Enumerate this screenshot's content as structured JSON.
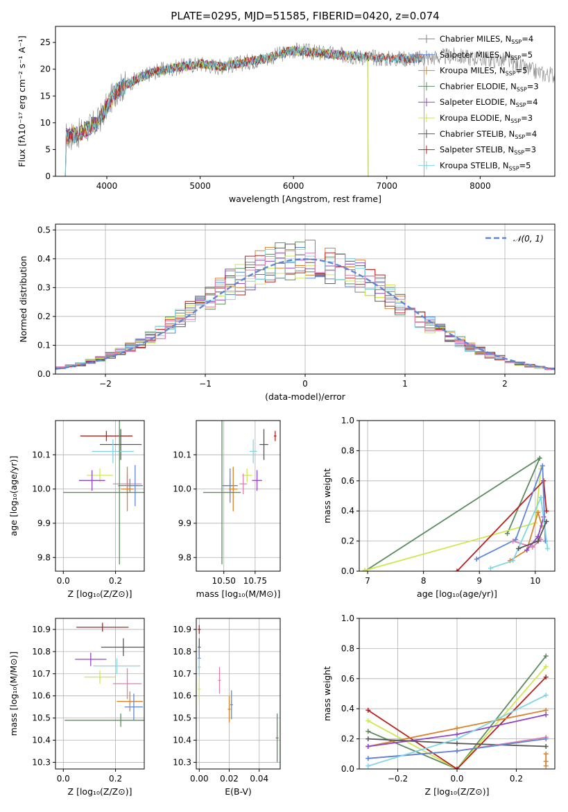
{
  "figure_title": "PLATE=0295, MJD=51585, FIBERID=0420, z=0.074",
  "colors": {
    "Chabrier MILES": "#808080",
    "Salpeter MILES": "#5f86d6",
    "Kroupa MILES": "#d9822b",
    "Chabrier ELODIE": "#5b8a5e",
    "Salpeter ELODIE": "#8e44c6",
    "Kroupa ELODIE": "#cde84c",
    "Chabrier STELIB": "#555555",
    "Salpeter STELIB": "#b81e1e",
    "Kroupa STELIB": "#7fd6e3",
    "pink": "#e07db0",
    "normal_curve": "#5f86d6"
  },
  "chart_data": [
    {
      "id": "spectrum",
      "type": "line",
      "title": "PLATE=0295, MJD=51585, FIBERID=0420, z=0.074",
      "xlabel": "wavelength [Angstrom, rest frame]",
      "ylabel": "Flux [fλ10⁻¹⁷ erg cm⁻² s⁻¹ A⁻¹]",
      "xlim": [
        3450,
        8800
      ],
      "ylim": [
        0,
        28
      ],
      "xticks": [
        "4000",
        "5000",
        "6000",
        "7000",
        "8000"
      ],
      "yticks": [
        "0",
        "5",
        "10",
        "15",
        "20",
        "25"
      ],
      "legend_position": "right",
      "legend": [
        {
          "label": "Chabrier MILES, N",
          "sub": "SSP",
          "tail": "=4",
          "series": "Chabrier MILES"
        },
        {
          "label": "Salpeter MILES, N",
          "sub": "SSP",
          "tail": "=5",
          "series": "Salpeter MILES"
        },
        {
          "label": "Kroupa MILES, N",
          "sub": "SSP",
          "tail": "=5",
          "series": "Kroupa MILES"
        },
        {
          "label": "Chabrier ELODIE, N",
          "sub": "SSP",
          "tail": "=3",
          "series": "Chabrier ELODIE"
        },
        {
          "label": "Salpeter ELODIE, N",
          "sub": "SSP",
          "tail": "=4",
          "series": "Salpeter ELODIE"
        },
        {
          "label": "Kroupa ELODIE, N",
          "sub": "SSP",
          "tail": "=3",
          "series": "Kroupa ELODIE"
        },
        {
          "label": "Chabrier STELIB, N",
          "sub": "SSP",
          "tail": "=4",
          "series": "Chabrier STELIB"
        },
        {
          "label": "Salpeter STELIB, N",
          "sub": "SSP",
          "tail": "=3",
          "series": "Salpeter STELIB"
        },
        {
          "label": "Kroupa STELIB, N",
          "sub": "SSP",
          "tail": "=5",
          "series": "Kroupa STELIB"
        }
      ],
      "continuum": {
        "x": [
          3500,
          3700,
          3900,
          4000,
          4100,
          4300,
          4500,
          4800,
          5000,
          5200,
          5400,
          5700,
          6000,
          6300,
          6600,
          7000,
          7400,
          7700,
          8000,
          8300,
          8500,
          8700
        ],
        "y": [
          7,
          8,
          10,
          13,
          16,
          18,
          19.5,
          20.5,
          21,
          20.5,
          21,
          22,
          23.5,
          23,
          22.5,
          22,
          22,
          22.5,
          22,
          21.5,
          20,
          19
        ]
      },
      "ranges": {
        "Chabrier MILES": [
          3500,
          8800
        ],
        "Salpeter MILES": [
          3520,
          7400
        ],
        "Kroupa MILES": [
          3520,
          7400
        ],
        "Chabrier ELODIE": [
          3520,
          6800
        ],
        "Salpeter ELODIE": [
          3520,
          6800
        ],
        "Kroupa ELODIE": [
          3520,
          6800
        ],
        "Chabrier STELIB": [
          3520,
          7400
        ],
        "Salpeter STELIB": [
          3520,
          7400
        ],
        "Kroupa STELIB": [
          3520,
          7400
        ]
      }
    },
    {
      "id": "residuals",
      "type": "histogram",
      "xlabel": "(data-model)/error",
      "ylabel": "Normed distribution",
      "xlim": [
        -2.5,
        2.5
      ],
      "ylim": [
        0,
        0.52
      ],
      "xticks": [
        "−2",
        "−1",
        "0",
        "1",
        "2"
      ],
      "yticks": [
        "0.0",
        "0.1",
        "0.2",
        "0.3",
        "0.4",
        "0.5"
      ],
      "bin_width": 0.1,
      "legend": [
        {
          "label": "𝒩(0, 1)",
          "series": "normal_curve",
          "style": "dashed"
        }
      ],
      "series": [
        "Chabrier MILES",
        "Salpeter MILES",
        "Kroupa MILES",
        "Chabrier ELODIE",
        "Salpeter ELODIE",
        "Kroupa ELODIE",
        "Chabrier STELIB",
        "Salpeter STELIB",
        "Kroupa STELIB",
        "pink"
      ]
    },
    {
      "id": "age_vs_Z",
      "type": "errorbar",
      "xlabel": "Z [log₁₀(Z/Z⊙)]",
      "ylabel": "age  [log₁₀(age/yr)]",
      "xlim": [
        -0.03,
        0.31
      ],
      "ylim": [
        9.76,
        10.2
      ],
      "xticks": [
        "0.0",
        "0.2"
      ],
      "yticks": [
        "9.8",
        "9.9",
        "10.0",
        "10.1"
      ],
      "points": [
        {
          "series": "Salpeter STELIB",
          "x": 0.165,
          "y": 10.155,
          "xerr": 0.1,
          "yerr": 0.015
        },
        {
          "series": "Chabrier STELIB",
          "x": 0.22,
          "y": 10.13,
          "xerr": 0.08,
          "yerr": 0.045
        },
        {
          "series": "Kroupa STELIB",
          "x": 0.19,
          "y": 10.11,
          "xerr": 0.08,
          "yerr": 0.035
        },
        {
          "series": "Kroupa ELODIE",
          "x": 0.14,
          "y": 10.04,
          "xerr": 0.05,
          "yerr": 0.02
        },
        {
          "series": "Salpeter ELODIE",
          "x": 0.11,
          "y": 10.025,
          "xerr": 0.05,
          "yerr": 0.03
        },
        {
          "series": "pink",
          "x": 0.245,
          "y": 10.015,
          "xerr": 0.055,
          "yerr": 0.03
        },
        {
          "series": "Chabrier MILES",
          "x": 0.255,
          "y": 10.01,
          "xerr": 0.045,
          "yerr": 0.02
        },
        {
          "series": "Salpeter MILES",
          "x": 0.275,
          "y": 10.01,
          "xerr": 0.03,
          "yerr": 0.06
        },
        {
          "series": "Kroupa MILES",
          "x": 0.245,
          "y": 10.0,
          "xerr": 0.025,
          "yerr": 0.065
        },
        {
          "series": "Chabrier ELODIE",
          "x": 0.215,
          "y": 9.99,
          "xerr": 0.215,
          "yerr": 0.21
        }
      ]
    },
    {
      "id": "age_vs_mass",
      "type": "errorbar",
      "xlabel": "mass [log₁₀(M/M⊙)]",
      "ylabel": "",
      "xlim": [
        10.28,
        10.95
      ],
      "ylim": [
        9.76,
        10.2
      ],
      "xticks": [
        "10.50",
        "10.75"
      ],
      "yticks": [
        "9.8",
        "9.9",
        "10.0",
        "10.1"
      ],
      "points": [
        {
          "series": "Salpeter STELIB",
          "x": 10.91,
          "y": 10.155,
          "xerr": 0.01,
          "yerr": 0.015
        },
        {
          "series": "Chabrier STELIB",
          "x": 10.82,
          "y": 10.13,
          "xerr": 0.035,
          "yerr": 0.045
        },
        {
          "series": "Kroupa STELIB",
          "x": 10.735,
          "y": 10.11,
          "xerr": 0.03,
          "yerr": 0.035
        },
        {
          "series": "Kroupa ELODIE",
          "x": 10.685,
          "y": 10.04,
          "xerr": 0.04,
          "yerr": 0.02
        },
        {
          "series": "Salpeter ELODIE",
          "x": 10.765,
          "y": 10.025,
          "xerr": 0.04,
          "yerr": 0.03
        },
        {
          "series": "pink",
          "x": 10.655,
          "y": 10.015,
          "xerr": 0.03,
          "yerr": 0.03
        },
        {
          "series": "Chabrier MILES",
          "x": 10.55,
          "y": 10.01,
          "xerr": 0.06,
          "yerr": 0.02
        },
        {
          "series": "Salpeter MILES",
          "x": 10.55,
          "y": 10.01,
          "xerr": 0.06,
          "yerr": 0.05
        },
        {
          "series": "Kroupa MILES",
          "x": 10.575,
          "y": 10.0,
          "xerr": 0.035,
          "yerr": 0.065
        },
        {
          "series": "Chabrier ELODIE",
          "x": 10.485,
          "y": 9.99,
          "xerr": 0.15,
          "yerr": 0.21
        }
      ]
    },
    {
      "id": "weight_vs_age",
      "type": "line",
      "xlabel": "age  [log₁₀(age/yr)]",
      "ylabel": "mass weight",
      "xlim": [
        6.85,
        10.35
      ],
      "ylim": [
        0,
        1
      ],
      "xticks": [
        "7",
        "8",
        "9",
        "10"
      ],
      "yticks": [
        "0.0",
        "0.2",
        "0.4",
        "0.6",
        "0.8",
        "1.0"
      ],
      "series": [
        {
          "series": "Chabrier ELODIE",
          "x": [
            6.95,
            10.08,
            9.5
          ],
          "y": [
            0.0,
            0.75,
            0.25
          ]
        },
        {
          "series": "Kroupa ELODIE",
          "x": [
            6.95,
            10.0,
            10.1
          ],
          "y": [
            0.005,
            0.32,
            0.68
          ]
        },
        {
          "series": "Salpeter STELIB",
          "x": [
            8.6,
            10.15,
            10.2
          ],
          "y": [
            0.0,
            0.6,
            0.4
          ]
        },
        {
          "series": "Salpeter MILES",
          "x": [
            8.95,
            9.65,
            10.13,
            10.18
          ],
          "y": [
            0.08,
            0.21,
            0.7,
            0.2
          ]
        },
        {
          "series": "Kroupa MILES",
          "x": [
            9.55,
            9.85,
            10.05,
            10.12
          ],
          "y": [
            0.07,
            0.14,
            0.39,
            0.3
          ]
        },
        {
          "series": "Salpeter ELODIE",
          "x": [
            9.85,
            10.05,
            10.15
          ],
          "y": [
            0.14,
            0.23,
            0.36
          ]
        },
        {
          "series": "pink",
          "x": [
            9.6,
            9.95,
            10.1
          ],
          "y": [
            0.2,
            0.16,
            0.21
          ]
        },
        {
          "series": "Kroupa STELIB",
          "x": [
            9.2,
            9.6,
            10.1,
            10.22
          ],
          "y": [
            0.02,
            0.07,
            0.49,
            0.15
          ]
        },
        {
          "series": "Chabrier STELIB",
          "x": [
            9.7,
            10.05,
            10.2
          ],
          "y": [
            0.15,
            0.2,
            0.33
          ]
        }
      ]
    },
    {
      "id": "mass_vs_Z",
      "type": "errorbar",
      "xlabel": "Z [log₁₀(Z/Z⊙)]",
      "ylabel": "mass [log₁₀(M/M⊙)]",
      "xlim": [
        -0.03,
        0.31
      ],
      "ylim": [
        10.27,
        10.95
      ],
      "xticks": [
        "0.0",
        "0.2"
      ],
      "yticks": [
        "10.3",
        "10.4",
        "10.5",
        "10.6",
        "10.7",
        "10.8",
        "10.9"
      ],
      "points": [
        {
          "series": "Salpeter STELIB",
          "x": 0.15,
          "y": 10.91,
          "xerr": 0.1,
          "yerr": 0.02
        },
        {
          "series": "Chabrier STELIB",
          "x": 0.23,
          "y": 10.82,
          "xerr": 0.085,
          "yerr": 0.04
        },
        {
          "series": "Salpeter ELODIE",
          "x": 0.105,
          "y": 10.765,
          "xerr": 0.06,
          "yerr": 0.03
        },
        {
          "series": "Kroupa STELIB",
          "x": 0.205,
          "y": 10.735,
          "xerr": 0.09,
          "yerr": 0.035
        },
        {
          "series": "Kroupa ELODIE",
          "x": 0.14,
          "y": 10.685,
          "xerr": 0.06,
          "yerr": 0.03
        },
        {
          "series": "pink",
          "x": 0.245,
          "y": 10.655,
          "xerr": 0.055,
          "yerr": 0.07
        },
        {
          "series": "Kroupa MILES",
          "x": 0.255,
          "y": 10.575,
          "xerr": 0.05,
          "yerr": 0.045
        },
        {
          "series": "Salpeter MILES",
          "x": 0.27,
          "y": 10.55,
          "xerr": 0.035,
          "yerr": 0.06
        },
        {
          "series": "Chabrier ELODIE",
          "x": 0.22,
          "y": 10.49,
          "xerr": 0.215,
          "yerr": 0.03
        }
      ]
    },
    {
      "id": "mass_vs_ebv",
      "type": "errorbar",
      "xlabel": "E(B-V)",
      "ylabel": "",
      "xlim": [
        -0.002,
        0.054
      ],
      "ylim": [
        10.27,
        10.95
      ],
      "xticks": [
        "0.00",
        "0.02",
        "0.04"
      ],
      "yticks": [
        "10.3",
        "10.4",
        "10.5",
        "10.6",
        "10.7",
        "10.8",
        "10.9"
      ],
      "points": [
        {
          "series": "Salpeter STELIB",
          "x": 0.0,
          "y": 10.9,
          "yerr": 0.02
        },
        {
          "series": "Chabrier STELIB",
          "x": 0.0,
          "y": 10.82,
          "yerr": 0.04
        },
        {
          "series": "Salpeter MILES",
          "x": 0.0,
          "y": 10.77,
          "yerr": 0.05
        },
        {
          "series": "Kroupa STELIB",
          "x": 0.0,
          "y": 10.73,
          "yerr": 0.04
        },
        {
          "series": "Kroupa ELODIE",
          "x": 0.0,
          "y": 10.63,
          "yerr": 0.05
        },
        {
          "series": "pink",
          "x": 0.0135,
          "y": 10.67,
          "yerr": 0.06
        },
        {
          "series": "Kroupa MILES",
          "x": 0.02,
          "y": 10.54,
          "yerr": 0.06
        },
        {
          "series": "Salpeter MILES",
          "x": 0.0215,
          "y": 10.56,
          "yerr": 0.065
        },
        {
          "series": "Chabrier ELODIE",
          "x": 0.052,
          "y": 10.41,
          "yerr": 0.11
        }
      ]
    },
    {
      "id": "weight_vs_Z",
      "type": "line",
      "xlabel": "Z [log₁₀(Z/Z⊙)]",
      "ylabel": "mass weight",
      "xlim": [
        -0.33,
        0.33
      ],
      "ylim": [
        0,
        1
      ],
      "xticks": [
        "−0.2",
        "0.0",
        "0.2"
      ],
      "yticks": [
        "0.0",
        "0.2",
        "0.4",
        "0.6",
        "0.8",
        "1.0"
      ],
      "series": [
        {
          "series": "Chabrier ELODIE",
          "x": [
            -0.3,
            0.0,
            0.3
          ],
          "y": [
            0.25,
            0.0,
            0.75
          ]
        },
        {
          "series": "Kroupa ELODIE",
          "x": [
            -0.3,
            0.0,
            0.3
          ],
          "y": [
            0.32,
            0.0,
            0.68
          ]
        },
        {
          "series": "Salpeter STELIB",
          "x": [
            -0.3,
            0.0,
            0.3
          ],
          "y": [
            0.39,
            0.0,
            0.61
          ]
        },
        {
          "series": "Kroupa MILES",
          "x": [
            -0.3,
            0.0,
            0.3
          ],
          "y": [
            0.15,
            0.27,
            0.39
          ]
        },
        {
          "series": "Salpeter ELODIE",
          "x": [
            -0.3,
            0.0,
            0.3
          ],
          "y": [
            0.15,
            0.23,
            0.36
          ]
        },
        {
          "series": "Chabrier STELIB",
          "x": [
            -0.3,
            0.0,
            0.3
          ],
          "y": [
            0.2,
            0.17,
            0.15
          ]
        },
        {
          "series": "pink",
          "x": [
            -0.3,
            0.0,
            0.3
          ],
          "y": [
            0.07,
            0.12,
            0.21
          ]
        },
        {
          "series": "Salpeter MILES",
          "x": [
            -0.3,
            0.0,
            0.3
          ],
          "y": [
            0.07,
            0.12,
            0.2
          ]
        },
        {
          "series": "Kroupa STELIB",
          "x": [
            -0.3,
            0.0,
            0.3
          ],
          "y": [
            0.02,
            0.2,
            0.49
          ]
        },
        {
          "series": "Kroupa MILES",
          "x": [
            0.3,
            0.3,
            0.3
          ],
          "y": [
            0.1,
            0.05,
            0.02
          ]
        }
      ]
    }
  ]
}
